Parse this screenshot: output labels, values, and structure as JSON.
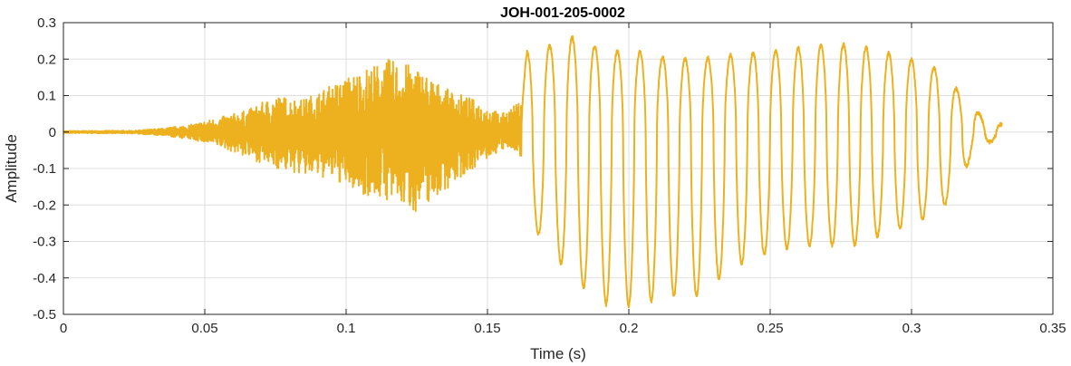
{
  "chart_data": {
    "type": "line",
    "title": "JOH-001-205-0002",
    "xlabel": "Time (s)",
    "ylabel": "Amplitude",
    "xlim": [
      0,
      0.35
    ],
    "ylim": [
      -0.5,
      0.3
    ],
    "x_ticks": [
      0,
      0.05,
      0.1,
      0.15,
      0.2,
      0.25,
      0.3,
      0.35
    ],
    "x_tick_labels": [
      "0",
      "0.05",
      "0.1",
      "0.15",
      "0.2",
      "0.25",
      "0.3",
      "0.35"
    ],
    "y_ticks": [
      0.3,
      0.2,
      0.1,
      0,
      -0.1,
      -0.2,
      -0.3,
      -0.4,
      -0.5
    ],
    "y_tick_labels": [
      "0.3",
      "0.2",
      "0.1",
      "0",
      "-0.1",
      "-0.2",
      "-0.3",
      "-0.4",
      "-0.5"
    ],
    "grid": true,
    "series": [
      {
        "color": "#EDB120",
        "x": [
          0,
          0.025,
          0.035,
          0.045,
          0.055,
          0.065,
          0.075,
          0.085,
          0.095,
          0.105,
          0.115,
          0.125,
          0.135,
          0.145,
          0.155,
          0.161,
          0.164,
          0.17,
          0.18,
          0.19,
          0.197,
          0.205,
          0.215,
          0.225,
          0.235,
          0.25,
          0.26,
          0.27,
          0.28,
          0.29,
          0.3,
          0.31,
          0.318,
          0.322,
          0.326,
          0.332
        ],
        "max": [
          0.003,
          0.004,
          0.01,
          0.02,
          0.04,
          0.06,
          0.1,
          0.09,
          0.13,
          0.17,
          0.2,
          0.18,
          0.12,
          0.09,
          0.05,
          0.08,
          0.22,
          0.23,
          0.26,
          0.23,
          0.22,
          0.22,
          0.2,
          0.2,
          0.21,
          0.22,
          0.23,
          0.24,
          0.24,
          0.22,
          0.2,
          0.17,
          0.1,
          0.07,
          0.03,
          0.02
        ],
        "min": [
          -0.003,
          -0.004,
          -0.01,
          -0.02,
          -0.04,
          -0.07,
          -0.1,
          -0.12,
          -0.13,
          -0.17,
          -0.19,
          -0.22,
          -0.16,
          -0.1,
          -0.05,
          -0.05,
          -0.24,
          -0.3,
          -0.4,
          -0.47,
          -0.48,
          -0.47,
          -0.45,
          -0.45,
          -0.38,
          -0.33,
          -0.31,
          -0.31,
          -0.31,
          -0.28,
          -0.25,
          -0.22,
          -0.13,
          -0.04,
          -0.03,
          -0.02
        ]
      }
    ]
  }
}
